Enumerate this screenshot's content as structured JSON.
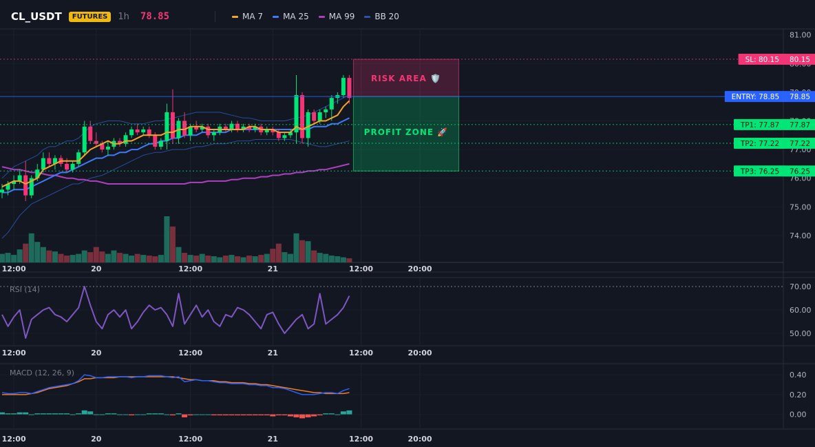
{
  "header": {
    "symbol": "CL_USDT",
    "badge": "FUTURES",
    "timeframe": "1h",
    "price": "78.85"
  },
  "legend": [
    {
      "label": "MA 7",
      "color": "#f5a623"
    },
    {
      "label": "MA 25",
      "color": "#3d7bfa"
    },
    {
      "label": "MA 99",
      "color": "#b03fbf"
    },
    {
      "label": "BB 20",
      "color": "#2b53a7"
    }
  ],
  "chart_data": [
    {
      "type": "candlestick",
      "candles": [
        [
          75.5,
          75.8,
          75.3,
          75.6
        ],
        [
          75.6,
          75.9,
          75.4,
          75.8
        ],
        [
          75.8,
          76.1,
          75.6,
          75.9
        ],
        [
          75.9,
          76.3,
          75.8,
          76.1
        ],
        [
          76.1,
          76.6,
          75.2,
          75.4
        ],
        [
          75.4,
          76.1,
          75.3,
          76.0
        ],
        [
          76.0,
          76.5,
          75.9,
          76.3
        ],
        [
          76.3,
          76.9,
          76.2,
          76.7
        ],
        [
          76.7,
          76.9,
          76.4,
          76.5
        ],
        [
          76.5,
          76.8,
          76.3,
          76.7
        ],
        [
          76.7,
          76.8,
          76.4,
          76.5
        ],
        [
          76.5,
          76.7,
          76.2,
          76.3
        ],
        [
          76.3,
          76.6,
          76.2,
          76.5
        ],
        [
          76.5,
          77.0,
          76.4,
          76.9
        ],
        [
          76.9,
          78.0,
          76.8,
          77.8
        ],
        [
          77.8,
          78.0,
          77.2,
          77.3
        ],
        [
          77.3,
          77.6,
          77.1,
          77.2
        ],
        [
          77.2,
          77.3,
          76.9,
          77.0
        ],
        [
          77.0,
          77.3,
          76.8,
          77.1
        ],
        [
          77.1,
          77.4,
          77.0,
          77.3
        ],
        [
          77.3,
          77.4,
          77.1,
          77.2
        ],
        [
          77.2,
          77.6,
          77.1,
          77.5
        ],
        [
          77.5,
          77.8,
          77.4,
          77.7
        ],
        [
          77.7,
          77.9,
          77.5,
          77.6
        ],
        [
          77.6,
          77.8,
          77.5,
          77.7
        ],
        [
          77.7,
          77.8,
          77.4,
          77.5
        ],
        [
          77.5,
          77.6,
          77.0,
          77.1
        ],
        [
          77.1,
          77.4,
          77.0,
          77.3
        ],
        [
          77.3,
          78.6,
          77.0,
          78.3
        ],
        [
          78.3,
          79.1,
          77.2,
          77.4
        ],
        [
          77.4,
          78.1,
          77.2,
          78.0
        ],
        [
          78.0,
          78.3,
          77.4,
          77.5
        ],
        [
          77.5,
          77.9,
          77.3,
          77.8
        ],
        [
          77.8,
          78.0,
          77.6,
          77.7
        ],
        [
          77.7,
          77.9,
          77.6,
          77.8
        ],
        [
          77.8,
          77.9,
          77.4,
          77.5
        ],
        [
          77.5,
          77.7,
          77.3,
          77.6
        ],
        [
          77.6,
          77.9,
          77.5,
          77.8
        ],
        [
          77.8,
          77.9,
          77.6,
          77.7
        ],
        [
          77.7,
          78.0,
          77.6,
          77.9
        ],
        [
          77.9,
          78.0,
          77.6,
          77.7
        ],
        [
          77.7,
          77.9,
          77.6,
          77.8
        ],
        [
          77.8,
          77.9,
          77.6,
          77.7
        ],
        [
          77.7,
          77.9,
          77.6,
          77.8
        ],
        [
          77.8,
          77.9,
          77.5,
          77.6
        ],
        [
          77.6,
          77.8,
          77.5,
          77.7
        ],
        [
          77.7,
          77.8,
          77.5,
          77.6
        ],
        [
          77.6,
          77.7,
          77.3,
          77.4
        ],
        [
          77.4,
          77.6,
          77.3,
          77.5
        ],
        [
          77.5,
          77.7,
          77.4,
          77.6
        ],
        [
          77.6,
          79.6,
          77.2,
          78.9
        ],
        [
          78.9,
          79.0,
          77.2,
          77.4
        ],
        [
          77.4,
          78.4,
          77.1,
          78.3
        ],
        [
          78.3,
          78.4,
          77.9,
          78.0
        ],
        [
          78.0,
          78.4,
          77.9,
          78.3
        ],
        [
          78.3,
          78.5,
          78.1,
          78.4
        ],
        [
          78.4,
          78.9,
          78.0,
          78.8
        ],
        [
          78.8,
          79.0,
          78.6,
          78.9
        ],
        [
          78.9,
          79.6,
          78.8,
          79.5
        ],
        [
          79.5,
          79.6,
          78.6,
          78.8
        ]
      ],
      "ma7": [
        75.7,
        75.8,
        75.9,
        75.9,
        75.8,
        75.9,
        76.0,
        76.3,
        76.4,
        76.5,
        76.6,
        76.6,
        76.6,
        76.6,
        76.8,
        77.0,
        77.1,
        77.2,
        77.3,
        77.2,
        77.2,
        77.3,
        77.3,
        77.4,
        77.5,
        77.5,
        77.5,
        77.5,
        77.6,
        77.6,
        77.7,
        77.7,
        77.8,
        77.8,
        77.8,
        77.7,
        77.7,
        77.7,
        77.7,
        77.7,
        77.7,
        77.7,
        77.8,
        77.8,
        77.7,
        77.7,
        77.7,
        77.6,
        77.6,
        77.6,
        77.8,
        77.7,
        77.8,
        77.9,
        78.0,
        78.0,
        78.1,
        78.2,
        78.5,
        78.7
      ],
      "ma25": [
        75.5,
        75.5,
        75.6,
        75.6,
        75.6,
        75.7,
        75.8,
        75.9,
        76.0,
        76.1,
        76.2,
        76.2,
        76.3,
        76.4,
        76.5,
        76.6,
        76.7,
        76.7,
        76.8,
        76.8,
        76.9,
        76.9,
        77.0,
        77.0,
        77.1,
        77.2,
        77.2,
        77.3,
        77.3,
        77.4,
        77.4,
        77.5,
        77.5,
        77.5,
        77.6,
        77.6,
        77.6,
        77.6,
        77.6,
        77.7,
        77.7,
        77.7,
        77.7,
        77.7,
        77.7,
        77.7,
        77.7,
        77.7,
        77.7,
        77.7,
        77.7,
        77.7,
        77.7,
        77.8,
        77.8,
        77.8,
        77.9,
        77.9,
        78.0,
        78.1
      ],
      "ma99": [
        76.4,
        76.35,
        76.3,
        76.3,
        76.25,
        76.2,
        76.2,
        76.15,
        76.1,
        76.1,
        76.05,
        76.0,
        76.0,
        75.95,
        75.95,
        75.9,
        75.9,
        75.85,
        75.8,
        75.8,
        75.8,
        75.8,
        75.8,
        75.8,
        75.8,
        75.8,
        75.8,
        75.8,
        75.8,
        75.8,
        75.8,
        75.8,
        75.85,
        75.85,
        75.85,
        75.9,
        75.9,
        75.9,
        75.9,
        75.95,
        75.95,
        76.0,
        76.0,
        76.0,
        76.05,
        76.05,
        76.1,
        76.1,
        76.15,
        76.15,
        76.2,
        76.2,
        76.25,
        76.25,
        76.3,
        76.3,
        76.35,
        76.4,
        76.45,
        76.5
      ],
      "bb_upper": [
        76.0,
        76.2,
        76.4,
        76.5,
        76.6,
        76.7,
        76.8,
        77.0,
        77.1,
        77.1,
        77.2,
        77.3,
        77.3,
        77.4,
        77.6,
        77.8,
        77.9,
        77.95,
        78.0,
        78.0,
        78.0,
        77.95,
        77.9,
        77.9,
        77.9,
        77.95,
        78.0,
        78.0,
        78.05,
        78.1,
        78.15,
        78.2,
        78.25,
        78.3,
        78.3,
        78.3,
        78.3,
        78.3,
        78.25,
        78.2,
        78.15,
        78.1,
        78.1,
        78.05,
        78.0,
        78.0,
        78.0,
        78.0,
        78.0,
        78.05,
        78.1,
        78.15,
        78.2,
        78.3,
        78.4,
        78.5,
        78.6,
        78.7,
        78.8,
        78.9
      ],
      "bb_lower": [
        73.9,
        74.1,
        74.4,
        74.7,
        74.9,
        75.1,
        75.2,
        75.3,
        75.4,
        75.5,
        75.6,
        75.7,
        75.8,
        75.8,
        75.9,
        76.0,
        76.05,
        76.1,
        76.2,
        76.3,
        76.4,
        76.5,
        76.6,
        76.7,
        76.8,
        76.85,
        76.9,
        76.9,
        76.95,
        77.0,
        77.0,
        77.0,
        77.05,
        77.1,
        77.1,
        77.15,
        77.2,
        77.2,
        77.2,
        77.25,
        77.3,
        77.3,
        77.3,
        77.35,
        77.35,
        77.35,
        77.35,
        77.35,
        77.35,
        77.35,
        77.3,
        77.25,
        77.2,
        77.15,
        77.1,
        77.1,
        77.15,
        77.2,
        77.25,
        77.3
      ],
      "volume": [
        2.5,
        2.8,
        2.2,
        3.8,
        5.5,
        8.5,
        6.0,
        4.5,
        3.5,
        3.2,
        2.5,
        2.0,
        2.2,
        2.5,
        3.5,
        3.0,
        4.5,
        3.2,
        2.5,
        3.5,
        2.8,
        2.5,
        2.0,
        2.5,
        2.2,
        2.0,
        1.8,
        2.2,
        13.5,
        10.5,
        4.5,
        2.8,
        2.2,
        2.0,
        2.5,
        2.0,
        1.8,
        1.5,
        2.0,
        2.2,
        1.8,
        1.5,
        2.0,
        1.8,
        2.2,
        2.5,
        4.0,
        5.5,
        3.0,
        2.5,
        8.5,
        6.5,
        6.2,
        3.5,
        2.8,
        2.5,
        2.0,
        1.8,
        1.5,
        1.2
      ],
      "levels": [
        {
          "name": "SL",
          "label": "SL: 80.15",
          "price": 80.15,
          "value_label": "80.15",
          "color": "#f23675"
        },
        {
          "name": "ENTRY",
          "label": "ENTRY: 78.85",
          "price": 78.85,
          "value_label": "78.85",
          "color": "#2962ff"
        },
        {
          "name": "TP1",
          "label": "TP1: 77.87",
          "price": 77.87,
          "value_label": "77.87",
          "color": "#00e676"
        },
        {
          "name": "TP2",
          "label": "TP2: 77.22",
          "price": 77.22,
          "value_label": "77.22",
          "color": "#00e676"
        },
        {
          "name": "TP3",
          "label": "TP3: 76.25",
          "price": 76.25,
          "value_label": "76.25",
          "color": "#00e676"
        }
      ],
      "zones": [
        {
          "label": "RISK AREA 🛡️",
          "from": 78.85,
          "to": 80.15,
          "color": "#f23675"
        },
        {
          "label": "PROFIT ZONE 🚀",
          "from": 76.25,
          "to": 78.85,
          "color": "#00e676"
        }
      ],
      "y_ticks": [
        "81.00",
        "80.00",
        "79.00",
        "78.00",
        "77.00",
        "76.00",
        "75.00",
        "74.00"
      ],
      "x_ticks": [
        {
          "index": 2,
          "label": "12:00"
        },
        {
          "index": 16,
          "label": "20"
        },
        {
          "index": 32,
          "label": "12:00"
        },
        {
          "index": 46,
          "label": "21"
        },
        {
          "index": 61,
          "label": "12:00"
        },
        {
          "index": 71,
          "label": "20:00"
        }
      ]
    },
    {
      "type": "line",
      "title": "RSI (14)",
      "values": [
        58,
        53,
        57,
        60,
        48,
        56,
        58,
        60,
        61,
        58,
        57,
        55,
        58,
        61,
        70,
        62,
        55,
        52,
        58,
        60,
        57,
        60,
        52,
        55,
        59,
        62,
        60,
        61,
        58,
        53,
        67,
        54,
        58,
        62,
        57,
        60,
        55,
        53,
        58,
        57,
        61,
        60,
        58,
        55,
        52,
        58,
        59,
        54,
        50,
        53,
        56,
        58,
        52,
        54,
        67,
        54,
        56,
        58,
        61,
        66
      ],
      "ylim": [
        45,
        72
      ],
      "y_ticks": [
        "70.00",
        "60.00",
        "50.00"
      ]
    },
    {
      "type": "line",
      "title": "MACD (12, 26, 9)",
      "macd": [
        0.22,
        0.21,
        0.21,
        0.22,
        0.22,
        0.21,
        0.23,
        0.25,
        0.27,
        0.28,
        0.29,
        0.3,
        0.31,
        0.34,
        0.4,
        0.39,
        0.37,
        0.37,
        0.38,
        0.38,
        0.38,
        0.38,
        0.37,
        0.38,
        0.38,
        0.39,
        0.39,
        0.39,
        0.38,
        0.37,
        0.38,
        0.33,
        0.34,
        0.35,
        0.34,
        0.34,
        0.33,
        0.32,
        0.32,
        0.31,
        0.31,
        0.31,
        0.3,
        0.3,
        0.29,
        0.29,
        0.27,
        0.27,
        0.26,
        0.24,
        0.22,
        0.2,
        0.2,
        0.2,
        0.21,
        0.22,
        0.22,
        0.21,
        0.24,
        0.26
      ],
      "signal": [
        0.2,
        0.2,
        0.2,
        0.2,
        0.2,
        0.21,
        0.22,
        0.24,
        0.26,
        0.27,
        0.28,
        0.29,
        0.31,
        0.33,
        0.36,
        0.36,
        0.37,
        0.37,
        0.37,
        0.37,
        0.38,
        0.38,
        0.38,
        0.38,
        0.38,
        0.38,
        0.38,
        0.38,
        0.38,
        0.38,
        0.37,
        0.36,
        0.35,
        0.35,
        0.34,
        0.34,
        0.34,
        0.33,
        0.33,
        0.32,
        0.32,
        0.32,
        0.31,
        0.31,
        0.3,
        0.3,
        0.29,
        0.28,
        0.27,
        0.26,
        0.25,
        0.24,
        0.23,
        0.22,
        0.22,
        0.21,
        0.21,
        0.21,
        0.21,
        0.22
      ],
      "histogram": [
        0.02,
        0.01,
        0.01,
        0.02,
        0.02,
        0.0,
        0.01,
        0.01,
        0.01,
        0.01,
        0.01,
        0.01,
        0.0,
        0.01,
        0.04,
        0.03,
        0.0,
        0.0,
        0.01,
        0.01,
        0.0,
        0.0,
        -0.01,
        0.0,
        0.0,
        0.01,
        0.01,
        0.01,
        0.0,
        -0.01,
        0.01,
        -0.03,
        -0.01,
        0.0,
        0.0,
        0.0,
        -0.01,
        -0.01,
        -0.01,
        -0.01,
        -0.01,
        -0.01,
        -0.01,
        -0.01,
        -0.01,
        -0.01,
        -0.02,
        -0.01,
        -0.01,
        -0.02,
        -0.03,
        -0.04,
        -0.03,
        -0.02,
        -0.01,
        0.01,
        0.01,
        0.0,
        0.03,
        0.04
      ],
      "ylim": [
        -0.12,
        0.46
      ],
      "y_ticks": [
        "0.40",
        "0.20",
        "0.00"
      ]
    }
  ]
}
